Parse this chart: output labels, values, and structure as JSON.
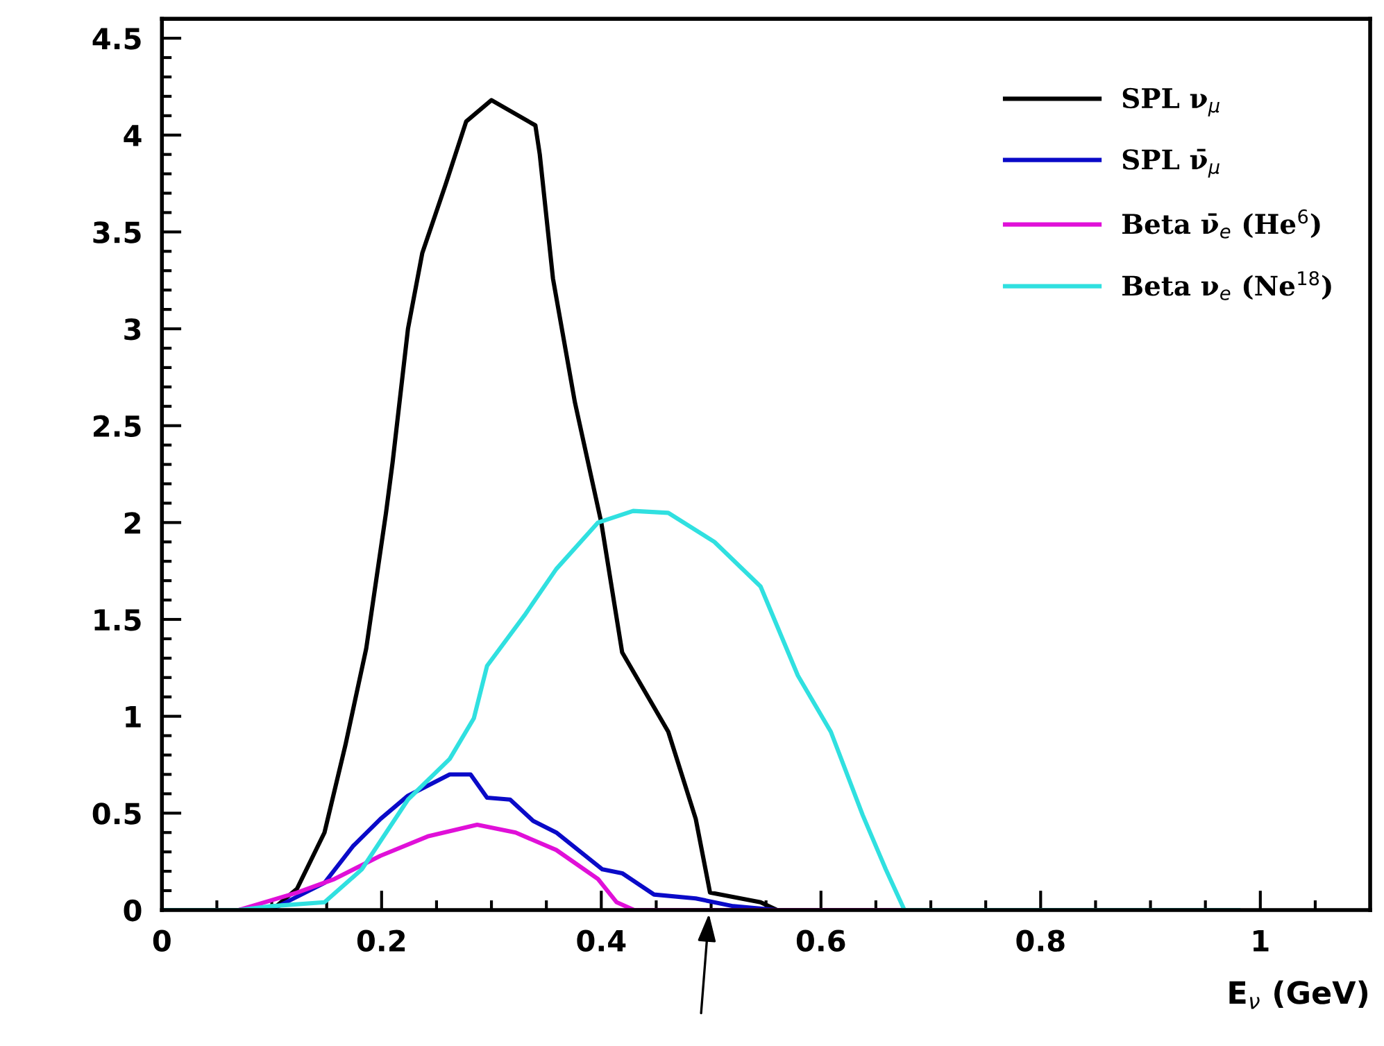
{
  "chart_data": {
    "type": "line",
    "xlabel": "E$_{ν}$ (GeV)",
    "xlim": [
      0,
      1.1
    ],
    "ylim": [
      0,
      4.6
    ],
    "xticks": [
      0,
      0.2,
      0.4,
      0.6,
      0.8,
      1
    ],
    "yticks": [
      0,
      0.5,
      1,
      1.5,
      2,
      2.5,
      3,
      3.5,
      4,
      4.5
    ],
    "grid": false,
    "legend": "top right",
    "marker": "none",
    "line_style": "solid",
    "series": [
      {
        "name": "SPL ν$_{μ}$",
        "color": "#000000",
        "x": [
          0,
          0.1,
          0.123,
          0.148,
          0.167,
          0.186,
          0.204,
          0.21,
          0.224,
          0.237,
          0.258,
          0.277,
          0.3,
          0.34,
          0.344,
          0.356,
          0.376,
          0.4,
          0.419,
          0.461,
          0.486,
          0.499,
          0.545,
          0.56
        ],
        "values": [
          0,
          0,
          0.11,
          0.4,
          0.85,
          1.35,
          2.05,
          2.31,
          3.0,
          3.39,
          3.74,
          4.07,
          4.18,
          4.05,
          3.9,
          3.26,
          2.62,
          2.0,
          1.33,
          0.92,
          0.47,
          0.09,
          0.04,
          0
        ]
      },
      {
        "name": "SPL ν̄$_{μ}$",
        "color": "#0a0ac8",
        "x": [
          0,
          0.07,
          0.106,
          0.148,
          0.174,
          0.199,
          0.224,
          0.262,
          0.281,
          0.296,
          0.317,
          0.338,
          0.359,
          0.401,
          0.419,
          0.448,
          0.486,
          0.52,
          0.56
        ],
        "values": [
          0,
          0,
          0.02,
          0.14,
          0.33,
          0.47,
          0.59,
          0.7,
          0.7,
          0.58,
          0.57,
          0.46,
          0.4,
          0.21,
          0.19,
          0.08,
          0.06,
          0.02,
          0
        ]
      },
      {
        "name": "Beta ν̄$_{e}$ (He$^{6}$)",
        "color": "#e010d8",
        "x": [
          0,
          0.07,
          0.123,
          0.157,
          0.199,
          0.242,
          0.287,
          0.322,
          0.359,
          0.397,
          0.414,
          0.43,
          0.672
        ],
        "values": [
          0,
          0,
          0.09,
          0.16,
          0.28,
          0.38,
          0.44,
          0.4,
          0.31,
          0.16,
          0.04,
          0,
          0
        ]
      },
      {
        "name": "Beta ν$_{e}$ (Ne$^{18}$)",
        "color": "#30e0e0",
        "x": [
          0,
          0.07,
          0.1,
          0.148,
          0.182,
          0.224,
          0.262,
          0.284,
          0.296,
          0.33,
          0.359,
          0.397,
          0.429,
          0.461,
          0.503,
          0.545,
          0.579,
          0.609,
          0.638,
          0.659,
          0.676,
          0.98
        ],
        "values": [
          0,
          0,
          0.02,
          0.04,
          0.21,
          0.57,
          0.78,
          0.99,
          1.26,
          1.52,
          1.76,
          2.0,
          2.06,
          2.05,
          1.9,
          1.67,
          1.21,
          0.92,
          0.49,
          0.21,
          0,
          0
        ]
      }
    ]
  }
}
